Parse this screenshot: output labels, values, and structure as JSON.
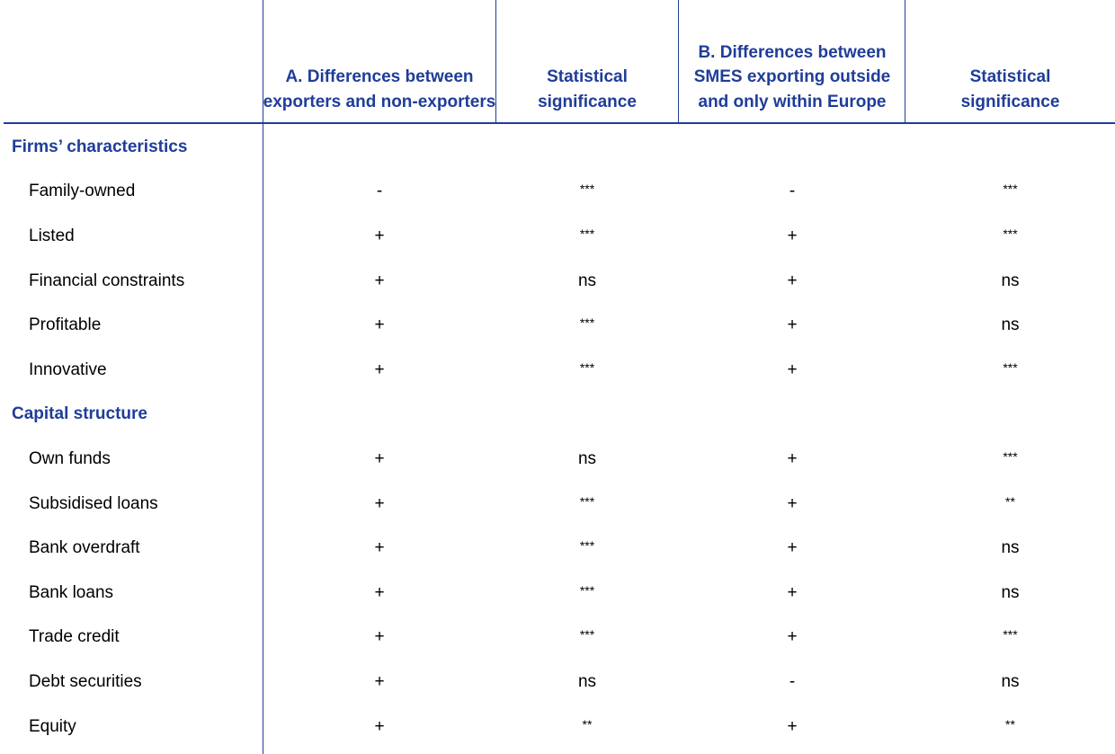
{
  "header": {
    "col_a": "A. Differences between exporters and non-exporters",
    "col_a_sig": "Statistical significance",
    "col_b": "B. Differences between SMES exporting outside and only within Europe",
    "col_b_sig": "Statistical significance"
  },
  "colors": {
    "accent": "#1f3d99"
  },
  "sections": [
    {
      "title": "Firms’ characteristics",
      "rows": [
        {
          "label": "Family-owned",
          "a": "-",
          "a_sig": "***",
          "b": "-",
          "b_sig": "***"
        },
        {
          "label": "Listed",
          "a": "+",
          "a_sig": "***",
          "b": "+",
          "b_sig": "***"
        },
        {
          "label": "Financial constraints",
          "a": "+",
          "a_sig": "ns",
          "b": "+",
          "b_sig": "ns"
        },
        {
          "label": "Profitable",
          "a": "+",
          "a_sig": "***",
          "b": "+",
          "b_sig": "ns"
        },
        {
          "label": "Innovative",
          "a": "+",
          "a_sig": "***",
          "b": "+",
          "b_sig": "***"
        }
      ]
    },
    {
      "title": "Capital structure",
      "rows": [
        {
          "label": "Own funds",
          "a": "+",
          "a_sig": "ns",
          "b": "+",
          "b_sig": "***"
        },
        {
          "label": "Subsidised loans",
          "a": "+",
          "a_sig": "***",
          "b": "+",
          "b_sig": "**"
        },
        {
          "label": "Bank overdraft",
          "a": "+",
          "a_sig": "***",
          "b": "+",
          "b_sig": "ns"
        },
        {
          "label": "Bank loans",
          "a": "+",
          "a_sig": "***",
          "b": "+",
          "b_sig": "ns"
        },
        {
          "label": "Trade credit",
          "a": "+",
          "a_sig": "***",
          "b": "+",
          "b_sig": "***"
        },
        {
          "label": "Debt securities",
          "a": "+",
          "a_sig": "ns",
          "b": "-",
          "b_sig": "ns"
        },
        {
          "label": "Equity",
          "a": "+",
          "a_sig": "**",
          "b": "+",
          "b_sig": "**"
        }
      ]
    }
  ]
}
